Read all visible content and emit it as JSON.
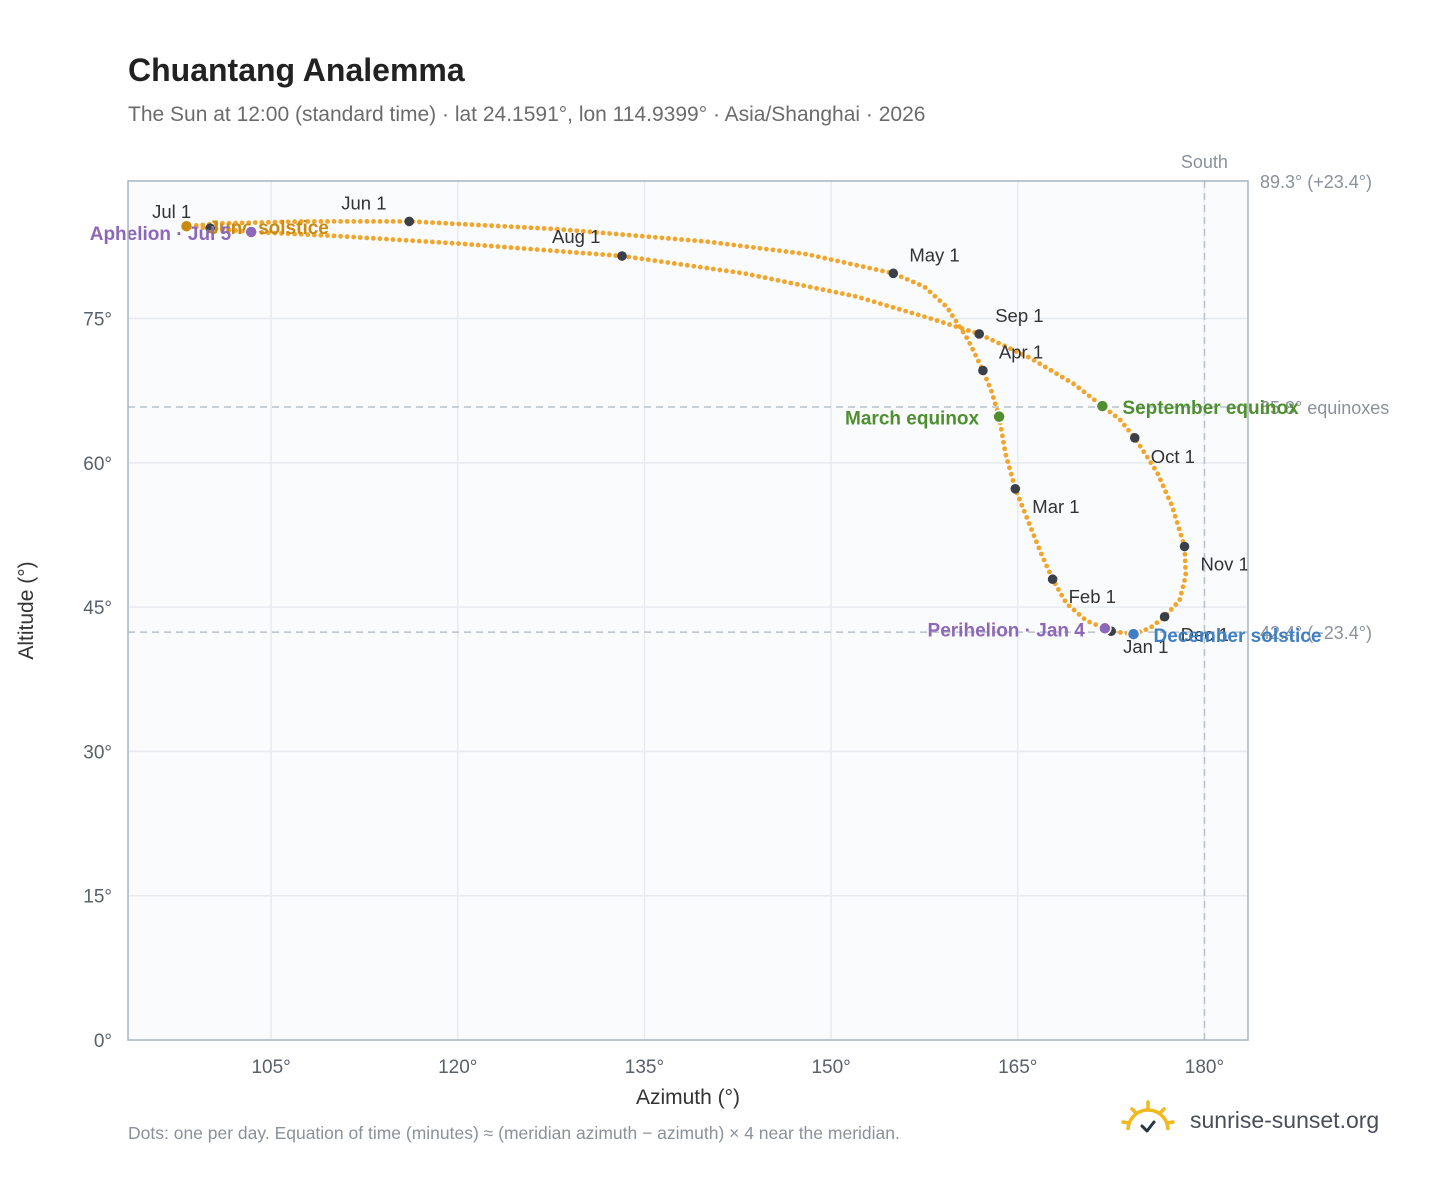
{
  "title": "Chuantang Analemma",
  "subtitle": "The Sun at 12:00 (standard time) · lat 24.1591°, lon 114.9399° · Asia/Shanghai · 2026",
  "footnote": "Dots: one per day. Equation of time (minutes) ≈ (meridian azimuth − azimuth) × 4 near the meridian.",
  "brand": {
    "name": "sunrise-sunset.org",
    "icon": "sun-logo-icon"
  },
  "colors": {
    "path": "#f2a52a",
    "month_marker": "#3a3f48",
    "solstice_june": "#c98a12",
    "solstice_december": "#3f7fc2",
    "equinox": "#4f8f2f",
    "apsis": "#8e68b8",
    "grid": "#e7ebf0",
    "plot_bg": "#f9fbfd",
    "reference_line": "#b8c2cc"
  },
  "chart_data": {
    "type": "scatter",
    "title": "Chuantang Analemma",
    "xlabel": "Azimuth (°)",
    "ylabel": "Altitude (°)",
    "xlim": [
      93.5,
      183.5
    ],
    "ylim": [
      0,
      89.3
    ],
    "xticks": [
      105,
      120,
      135,
      150,
      165,
      180
    ],
    "xtick_labels": [
      "105°",
      "120°",
      "135°",
      "150°",
      "165°",
      "180°"
    ],
    "yticks": [
      0,
      15,
      30,
      45,
      60,
      75
    ],
    "ytick_labels": [
      "0°",
      "15°",
      "30°",
      "45°",
      "60°",
      "75°"
    ],
    "grid": true,
    "reference_lines": [
      {
        "axis": "x",
        "value": 180,
        "label": "South"
      },
      {
        "axis": "y",
        "value": 65.8,
        "label": "65.8° equinoxes"
      },
      {
        "axis": "y",
        "value": 42.4,
        "label": "42.4° (−23.4°)"
      },
      {
        "axis": "y",
        "value": 89.3,
        "label": "89.3° (+23.4°)"
      }
    ],
    "month_markers": [
      {
        "label": "Jan 1",
        "az": 172.5,
        "alt": 42.5
      },
      {
        "label": "Feb 1",
        "az": 167.8,
        "alt": 47.9
      },
      {
        "label": "Mar 1",
        "az": 164.8,
        "alt": 57.3
      },
      {
        "label": "Apr 1",
        "az": 162.2,
        "alt": 69.6
      },
      {
        "label": "May 1",
        "az": 155.0,
        "alt": 79.7
      },
      {
        "label": "Jun 1",
        "az": 116.1,
        "alt": 85.1
      },
      {
        "label": "Jul 1",
        "az": 100.1,
        "alt": 84.4
      },
      {
        "label": "Aug 1",
        "az": 133.2,
        "alt": 81.5
      },
      {
        "label": "Sep 1",
        "az": 161.9,
        "alt": 73.4
      },
      {
        "label": "Oct 1",
        "az": 174.4,
        "alt": 62.6
      },
      {
        "label": "Nov 1",
        "az": 178.4,
        "alt": 51.3
      },
      {
        "label": "Dec 1",
        "az": 176.8,
        "alt": 44.0
      }
    ],
    "special_points": [
      {
        "label": "June solstice",
        "az": 98.2,
        "alt": 84.6,
        "kind": "solstice_june"
      },
      {
        "label": "December solstice",
        "az": 174.3,
        "alt": 42.2,
        "kind": "solstice_december"
      },
      {
        "label": "March equinox",
        "az": 163.5,
        "alt": 64.8,
        "kind": "equinox"
      },
      {
        "label": "September equinox",
        "az": 171.8,
        "alt": 65.9,
        "kind": "equinox"
      },
      {
        "label": "Aphelion · Jul 5",
        "az": 103.4,
        "alt": 84.0,
        "kind": "apsis"
      },
      {
        "label": "Perihelion · Jan 4",
        "az": 172.0,
        "alt": 42.8,
        "kind": "apsis"
      }
    ],
    "analemma_path": [
      {
        "az": 174.3,
        "alt": 42.2
      },
      {
        "az": 172.5,
        "alt": 42.5
      },
      {
        "az": 170.5,
        "alt": 43.6
      },
      {
        "az": 168.9,
        "alt": 45.4
      },
      {
        "az": 167.8,
        "alt": 47.9
      },
      {
        "az": 166.9,
        "alt": 50.5
      },
      {
        "az": 166.0,
        "alt": 53.4
      },
      {
        "az": 164.8,
        "alt": 57.3
      },
      {
        "az": 164.0,
        "alt": 61.0
      },
      {
        "az": 163.5,
        "alt": 64.8
      },
      {
        "az": 162.9,
        "alt": 67.4
      },
      {
        "az": 162.2,
        "alt": 69.6
      },
      {
        "az": 161.0,
        "alt": 72.8
      },
      {
        "az": 159.3,
        "alt": 76.2
      },
      {
        "az": 157.5,
        "alt": 78.3
      },
      {
        "az": 155.0,
        "alt": 79.7
      },
      {
        "az": 148.0,
        "alt": 81.7
      },
      {
        "az": 140.0,
        "alt": 83.0
      },
      {
        "az": 128.0,
        "alt": 84.3
      },
      {
        "az": 116.1,
        "alt": 85.1
      },
      {
        "az": 108.0,
        "alt": 85.1
      },
      {
        "az": 101.0,
        "alt": 84.9
      },
      {
        "az": 98.2,
        "alt": 84.6
      },
      {
        "az": 100.1,
        "alt": 84.4
      },
      {
        "az": 103.4,
        "alt": 84.0
      },
      {
        "az": 110.0,
        "alt": 83.6
      },
      {
        "az": 120.0,
        "alt": 82.8
      },
      {
        "az": 133.2,
        "alt": 81.5
      },
      {
        "az": 143.0,
        "alt": 79.7
      },
      {
        "az": 152.0,
        "alt": 77.3
      },
      {
        "az": 158.0,
        "alt": 75.0
      },
      {
        "az": 161.9,
        "alt": 73.4
      },
      {
        "az": 166.0,
        "alt": 70.9
      },
      {
        "az": 169.5,
        "alt": 68.2
      },
      {
        "az": 171.8,
        "alt": 65.9
      },
      {
        "az": 173.2,
        "alt": 64.5
      },
      {
        "az": 174.4,
        "alt": 62.6
      },
      {
        "az": 176.2,
        "alt": 59.0
      },
      {
        "az": 177.4,
        "alt": 55.5
      },
      {
        "az": 178.4,
        "alt": 51.3
      },
      {
        "az": 178.5,
        "alt": 48.3
      },
      {
        "az": 178.0,
        "alt": 45.7
      },
      {
        "az": 176.8,
        "alt": 44.0
      },
      {
        "az": 175.6,
        "alt": 42.8
      },
      {
        "az": 174.3,
        "alt": 42.2
      }
    ]
  }
}
